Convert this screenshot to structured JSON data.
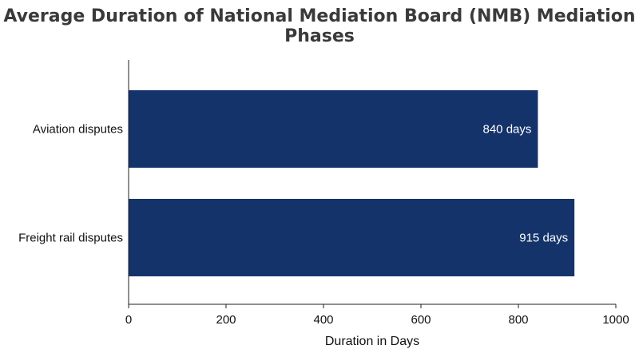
{
  "chart_data": {
    "type": "bar",
    "orientation": "horizontal",
    "title": "Average Duration of National Mediation Board (NMB) Mediation Phases",
    "xlabel": "Duration in Days",
    "ylabel": "",
    "categories": [
      "Aviation disputes",
      "Freight rail disputes"
    ],
    "values": [
      840,
      915
    ],
    "data_labels": [
      "840 days",
      "915 days"
    ],
    "xlim": [
      0,
      1000
    ],
    "xticks": [
      0,
      200,
      400,
      600,
      800,
      1000
    ],
    "xtick_labels": [
      "0",
      "200",
      "400",
      "600",
      "800",
      "1000"
    ],
    "grid": false,
    "legend": "none",
    "colors": {
      "bar": "#14336a",
      "axis": "#222222",
      "title": "#3a3a3a"
    }
  }
}
